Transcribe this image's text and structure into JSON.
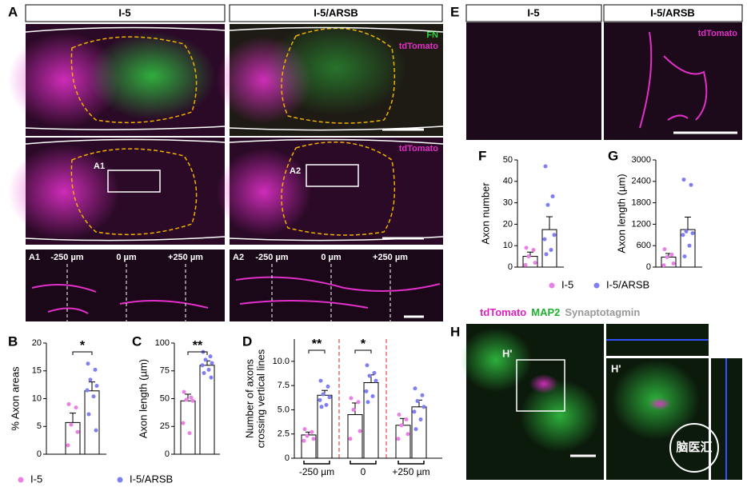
{
  "panel_labels": [
    "A",
    "B",
    "C",
    "D",
    "E",
    "F",
    "G",
    "H"
  ],
  "panel_a": {
    "columns": [
      "I-5",
      "I-5/ARSB"
    ],
    "row1_labels": [
      "FN",
      "tdTomato"
    ],
    "row2_label": "tdTomato",
    "insets": [
      "A1",
      "A2"
    ],
    "inset_positions": [
      "-250 µm",
      "0 µm",
      "+250 µm"
    ]
  },
  "panel_e": {
    "columns": [
      "I-5",
      "I-5/ARSB"
    ],
    "label": "tdTomato"
  },
  "panel_h": {
    "channels": [
      "tdTomato",
      "MAP2",
      "Synaptotagmin"
    ],
    "inset": "H'",
    "watermark": "脑医汇"
  },
  "chart_data": [
    {
      "type": "bar",
      "ylabel": [
        "% Axon areas"
      ],
      "ylim": [
        0,
        20
      ],
      "yticks": [
        0,
        5,
        10,
        15,
        20
      ],
      "annotations": [
        "*"
      ],
      "series": [
        {
          "name": "I-5",
          "color": "#ea80e6",
          "values": [
            5.7
          ],
          "errors": [
            1.7
          ],
          "points": [
            [
              9.0,
              8.4,
              5.3,
              4.0,
              1.6
            ]
          ]
        },
        {
          "name": "I-5/ARSB",
          "color": "#7f7ff2",
          "values": [
            11.4
          ],
          "errors": [
            1.6
          ],
          "points": [
            [
              16.3,
              15.2,
              13.4,
              12.3,
              11.5,
              10.4,
              7.2,
              4.3
            ]
          ]
        }
      ]
    },
    {
      "type": "bar",
      "ylabel": [
        "Axon length (µm)"
      ],
      "ylim": [
        0,
        100
      ],
      "yticks": [
        0,
        25,
        50,
        75,
        100
      ],
      "annotations": [
        "**"
      ],
      "series": [
        {
          "name": "I-5",
          "color": "#ea80e6",
          "values": [
            48
          ],
          "errors": [
            6
          ],
          "points": [
            [
              56,
              51,
              49,
              48,
              28,
              19
            ]
          ]
        },
        {
          "name": "I-5/ARSB",
          "color": "#7f7ff2",
          "values": [
            80
          ],
          "errors": [
            4
          ],
          "points": [
            [
              92,
              88,
              85,
              82,
              80,
              76,
              73,
              69
            ]
          ]
        }
      ]
    },
    {
      "type": "bar",
      "ylabel": [
        "Number of axons",
        "crossing vertical lines"
      ],
      "categories": [
        "-250 µm",
        "0",
        "+250 µm"
      ],
      "ylim": [
        0,
        12.3
      ],
      "yticks": [
        0,
        2.5,
        {
          "value": 5,
          "label": "5.0"
        },
        7.5,
        {
          "value": 10,
          "label": "10.0"
        }
      ],
      "annotations": [
        "**",
        "*"
      ],
      "series": [
        {
          "name": "I-5",
          "color": "#ea80e6",
          "values": [
            2.4,
            4.5,
            3.4
          ],
          "errors": [
            0.3,
            1.2,
            0.7
          ],
          "points": [
            [
              3.0,
              2.7,
              2.3,
              2.0,
              1.8
            ],
            [
              6.2,
              5.8,
              5.0,
              2.8,
              2.0
            ],
            [
              4.5,
              4.0,
              3.4,
              2.5,
              2.0
            ]
          ]
        },
        {
          "name": "I-5/ARSB",
          "color": "#7f7ff2",
          "values": [
            6.5,
            7.8,
            5.3
          ],
          "errors": [
            0.5,
            0.8,
            0.7
          ],
          "points": [
            [
              8.0,
              7.4,
              6.6,
              6.3,
              6.0,
              5.5,
              5.3
            ],
            [
              9.6,
              8.8,
              8.5,
              8.0,
              6.9,
              6.4,
              5.8
            ],
            [
              7.2,
              6.5,
              5.9,
              5.3,
              4.8,
              4.0,
              3.0
            ]
          ]
        }
      ]
    },
    {
      "type": "bar",
      "ylabel": [
        "Axon number"
      ],
      "ylim": [
        0,
        50
      ],
      "yticks": [
        0,
        10,
        20,
        30,
        40,
        50
      ],
      "annotations": [],
      "series": [
        {
          "name": "I-5",
          "color": "#ea80e6",
          "values": [
            5
          ],
          "errors": [
            2
          ],
          "points": [
            [
              9,
              8,
              5,
              2,
              1
            ]
          ]
        },
        {
          "name": "I-5/ARSB",
          "color": "#7f7ff2",
          "values": [
            17.5
          ],
          "errors": [
            6
          ],
          "points": [
            [
              47,
              33,
              29,
              15,
              13,
              8,
              6
            ]
          ]
        }
      ]
    },
    {
      "type": "bar",
      "ylabel": [
        "Axon length (µm)"
      ],
      "ylim": [
        0,
        3000
      ],
      "yticks": [
        0,
        600,
        1200,
        1800,
        2400,
        3000
      ],
      "annotations": [],
      "series": [
        {
          "name": "I-5",
          "color": "#ea80e6",
          "values": [
            280
          ],
          "errors": [
            100
          ],
          "points": [
            [
              500,
              350,
              280,
              100,
              50
            ]
          ]
        },
        {
          "name": "I-5/ARSB",
          "color": "#7f7ff2",
          "values": [
            1050
          ],
          "errors": [
            350
          ],
          "points": [
            [
              2450,
              2300,
              1000,
              950,
              900,
              600,
              300
            ]
          ]
        }
      ]
    }
  ]
}
